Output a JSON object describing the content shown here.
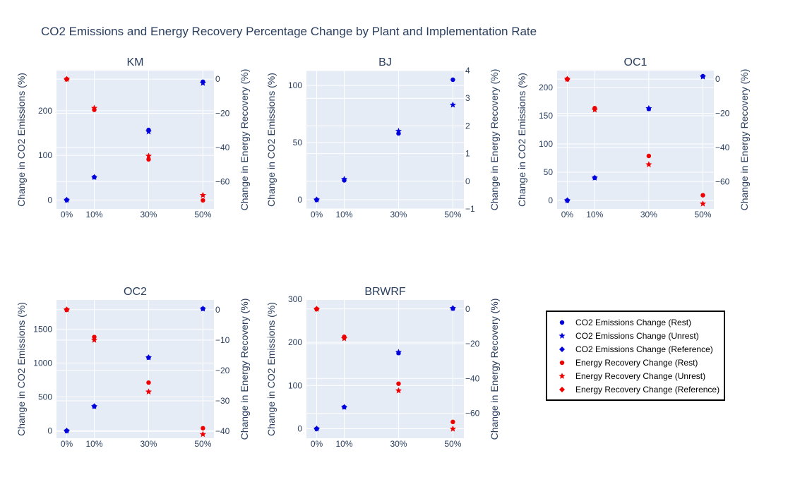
{
  "chart_data": {
    "type": "scatter",
    "title": "CO2 Emissions and Energy Recovery Percentage Change by Plant and Implementation Rate",
    "x_categories": [
      "0%",
      "10%",
      "30%",
      "50%"
    ],
    "y_left_label": "Change in CO2 Emissions (%)",
    "y_right_label": "Change in Energy Recovery (%)",
    "colors": {
      "co2": "#0000dd",
      "energy": "#ee0000",
      "plot_bg": "#e5ecf6",
      "grid": "#ffffff",
      "text": "#2a3f5f"
    },
    "legend": {
      "placement": "right-middle",
      "entries": [
        {
          "label": "CO2 Emissions Change (Rest)",
          "color": "#0000dd",
          "symbol": "circle"
        },
        {
          "label": "CO2 Emissions Change (Unrest)",
          "color": "#0000dd",
          "symbol": "star"
        },
        {
          "label": "CO2 Emissions Change (Reference)",
          "color": "#0000dd",
          "symbol": "diamond"
        },
        {
          "label": "Energy Recovery Change (Rest)",
          "color": "#ee0000",
          "symbol": "circle"
        },
        {
          "label": "Energy Recovery Change (Unrest)",
          "color": "#ee0000",
          "symbol": "star"
        },
        {
          "label": "Energy Recovery Change (Reference)",
          "color": "#ee0000",
          "symbol": "diamond"
        }
      ]
    },
    "subplots": [
      {
        "name": "KM",
        "left_range": [
          -20,
          290
        ],
        "left_ticks": [
          0,
          100,
          200
        ],
        "right_range": [
          -76,
          5
        ],
        "right_ticks": [
          0,
          -20,
          -40,
          -60
        ],
        "co2": {
          "rest": [
            0,
            51,
            157,
            265
          ],
          "unrest": [
            0,
            51,
            153,
            262
          ],
          "reference": [
            0
          ]
        },
        "energy": {
          "rest": [
            0,
            -18,
            -47,
            -71
          ],
          "unrest": [
            0,
            -17,
            -45,
            -68
          ],
          "reference": [
            0
          ]
        }
      },
      {
        "name": "BJ",
        "left_range": [
          -8,
          113
        ],
        "left_ticks": [
          0,
          50,
          100
        ],
        "right_range": [
          -1,
          4
        ],
        "right_ticks": [
          -1,
          0,
          1,
          2,
          3,
          4
        ],
        "co2": {
          "rest": [
            0,
            17,
            58,
            105
          ],
          "unrest": [
            0,
            18,
            60,
            83
          ],
          "reference": [
            0
          ]
        },
        "energy": null
      },
      {
        "name": "OC1",
        "left_range": [
          -15,
          230
        ],
        "left_ticks": [
          0,
          50,
          100,
          150,
          200
        ],
        "right_range": [
          -76,
          5
        ],
        "right_ticks": [
          0,
          -20,
          -40,
          -60
        ],
        "co2": {
          "rest": [
            0,
            40,
            162,
            220
          ],
          "unrest": [
            0,
            40,
            163,
            219
          ],
          "reference": [
            0
          ]
        },
        "energy": {
          "rest": [
            0,
            -17,
            -45,
            -68
          ],
          "unrest": [
            0,
            -18,
            -50,
            -73
          ],
          "reference": [
            0
          ]
        }
      },
      {
        "name": "OC2",
        "left_range": [
          -110,
          1930
        ],
        "left_ticks": [
          0,
          500,
          1000,
          1500
        ],
        "right_range": [
          -42.3,
          3.2
        ],
        "right_ticks": [
          0,
          -10,
          -20,
          -30,
          -40
        ],
        "co2": {
          "rest": [
            0,
            360,
            1080,
            1800
          ],
          "unrest": [
            0,
            360,
            1080,
            1800
          ],
          "reference": [
            0
          ]
        },
        "energy": {
          "rest": [
            0,
            -9,
            -24,
            -39
          ],
          "unrest": [
            0,
            -10,
            -27,
            -41
          ],
          "reference": [
            0
          ]
        }
      },
      {
        "name": "BRWRF",
        "left_range": [
          -22,
          298
        ],
        "left_ticks": [
          0,
          100,
          200,
          300
        ],
        "right_range": [
          -74.4,
          5.2
        ],
        "right_ticks": [
          0,
          -20,
          -40,
          -60
        ],
        "co2": {
          "rest": [
            0,
            50,
            175,
            278
          ],
          "unrest": [
            0,
            50,
            177,
            279
          ],
          "reference": [
            0
          ]
        },
        "energy": {
          "rest": [
            0,
            -16,
            -43,
            -65
          ],
          "unrest": [
            0,
            -17,
            -47,
            -69
          ],
          "reference": [
            0
          ]
        }
      }
    ]
  }
}
